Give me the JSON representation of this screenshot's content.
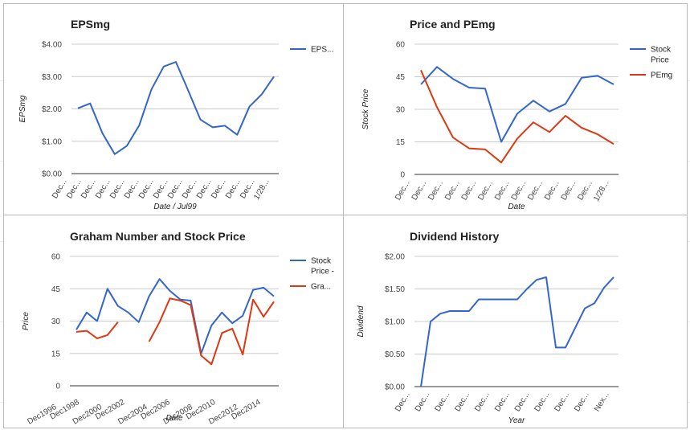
{
  "colors": {
    "blue": "#3366cc",
    "red": "#dc3912",
    "grid": "#cccccc",
    "baseline": "#333333"
  },
  "chart_data": [
    {
      "type": "line",
      "title": "EPSmg",
      "xlabel": "Date / Jul99",
      "ylabel": "EPSmg",
      "yticks": [
        "$0.00",
        "$1.00",
        "$2.00",
        "$3.00",
        "$4.00"
      ],
      "ylim": [
        0,
        4
      ],
      "x_tick_labels": [
        "Dec...",
        "Dec...",
        "Dec...",
        "Dec...",
        "Dec...",
        "Dec...",
        "Dec...",
        "Dec...",
        "Dec...",
        "Dec...",
        "Dec...",
        "Dec...",
        "Dec...",
        "Dec...",
        "1/28..."
      ],
      "series": [
        {
          "name": "EPS...",
          "color": "#3366cc",
          "values": [
            2.02,
            2.17,
            1.25,
            0.6,
            0.86,
            1.49,
            2.6,
            3.31,
            3.45,
            2.57,
            1.67,
            1.43,
            1.48,
            1.2,
            2.07,
            2.45,
            3.0
          ]
        }
      ],
      "legend": "right"
    },
    {
      "type": "line",
      "title": "Price and PEmg",
      "xlabel": "Date",
      "ylabel": "Stock Price",
      "yticks": [
        "0",
        "15",
        "30",
        "45",
        "60"
      ],
      "ylim": [
        0,
        60
      ],
      "x_tick_labels": [
        "Dec...",
        "Dec...",
        "Dec...",
        "Dec...",
        "Dec...",
        "Dec...",
        "Dec...",
        "Dec...",
        "Dec...",
        "Dec...",
        "Dec...",
        "Dec...",
        "1/28..."
      ],
      "series": [
        {
          "name": "Stock Price",
          "color": "#3366cc",
          "values": [
            41.5,
            49.5,
            44,
            40,
            39.5,
            15,
            28,
            34,
            29,
            32.5,
            44.5,
            45.5,
            41.5
          ]
        },
        {
          "name": "PEmg",
          "color": "#dc3912",
          "values": [
            48,
            31,
            17,
            12,
            11.5,
            5.5,
            16.5,
            24,
            19.5,
            27,
            21.5,
            18.5,
            14
          ]
        }
      ],
      "legend": "right"
    },
    {
      "type": "line",
      "title": "Graham Number and Stock Price",
      "xlabel": "Date",
      "ylabel": "Price",
      "yticks": [
        "0",
        "15",
        "30",
        "45",
        "60"
      ],
      "ylim": [
        0,
        60
      ],
      "x_tick_labels": [
        "Dec1996",
        "Dec1998",
        "Dec2000",
        "Dec2002",
        "Dec2004",
        "Dec2006",
        "Dec2008",
        "Dec2010",
        "Dec2012",
        "Dec2014"
      ],
      "series": [
        {
          "name": "Stock Price -",
          "color": "#3366cc",
          "values": [
            26,
            34,
            30,
            45,
            37,
            34,
            29.5,
            41.5,
            49.5,
            44,
            40,
            39.5,
            15,
            28,
            34,
            29,
            32.5,
            44.5,
            45.5,
            41.5
          ]
        },
        {
          "name": "Gra...",
          "color": "#dc3912",
          "values": [
            25,
            25.5,
            22,
            23.5,
            29.5,
            null,
            null,
            20.5,
            29.5,
            40.5,
            39.5,
            37.5,
            14,
            10,
            24.5,
            26.5,
            14.5,
            40,
            32,
            39
          ]
        }
      ],
      "legend": "right"
    },
    {
      "type": "line",
      "title": "Dividend History",
      "xlabel": "Year",
      "ylabel": "Dividend",
      "yticks": [
        "$0.00",
        "$0.50",
        "$1.00",
        "$1.50",
        "$2.00"
      ],
      "ylim": [
        0,
        2
      ],
      "x_tick_labels": [
        "Dec...",
        "Dec...",
        "Dec...",
        "Dec...",
        "Dec...",
        "Dec...",
        "Dec...",
        "Dec...",
        "Dec...",
        "Dec...",
        "Nex..."
      ],
      "series": [
        {
          "name": "",
          "color": "#3366cc",
          "values": [
            0,
            1.0,
            1.12,
            1.16,
            1.16,
            1.16,
            1.34,
            1.34,
            1.34,
            1.34,
            1.34,
            1.5,
            1.64,
            1.68,
            0.6,
            0.6,
            0.9,
            1.2,
            1.28,
            1.52,
            1.68
          ]
        }
      ],
      "legend": "none"
    }
  ]
}
